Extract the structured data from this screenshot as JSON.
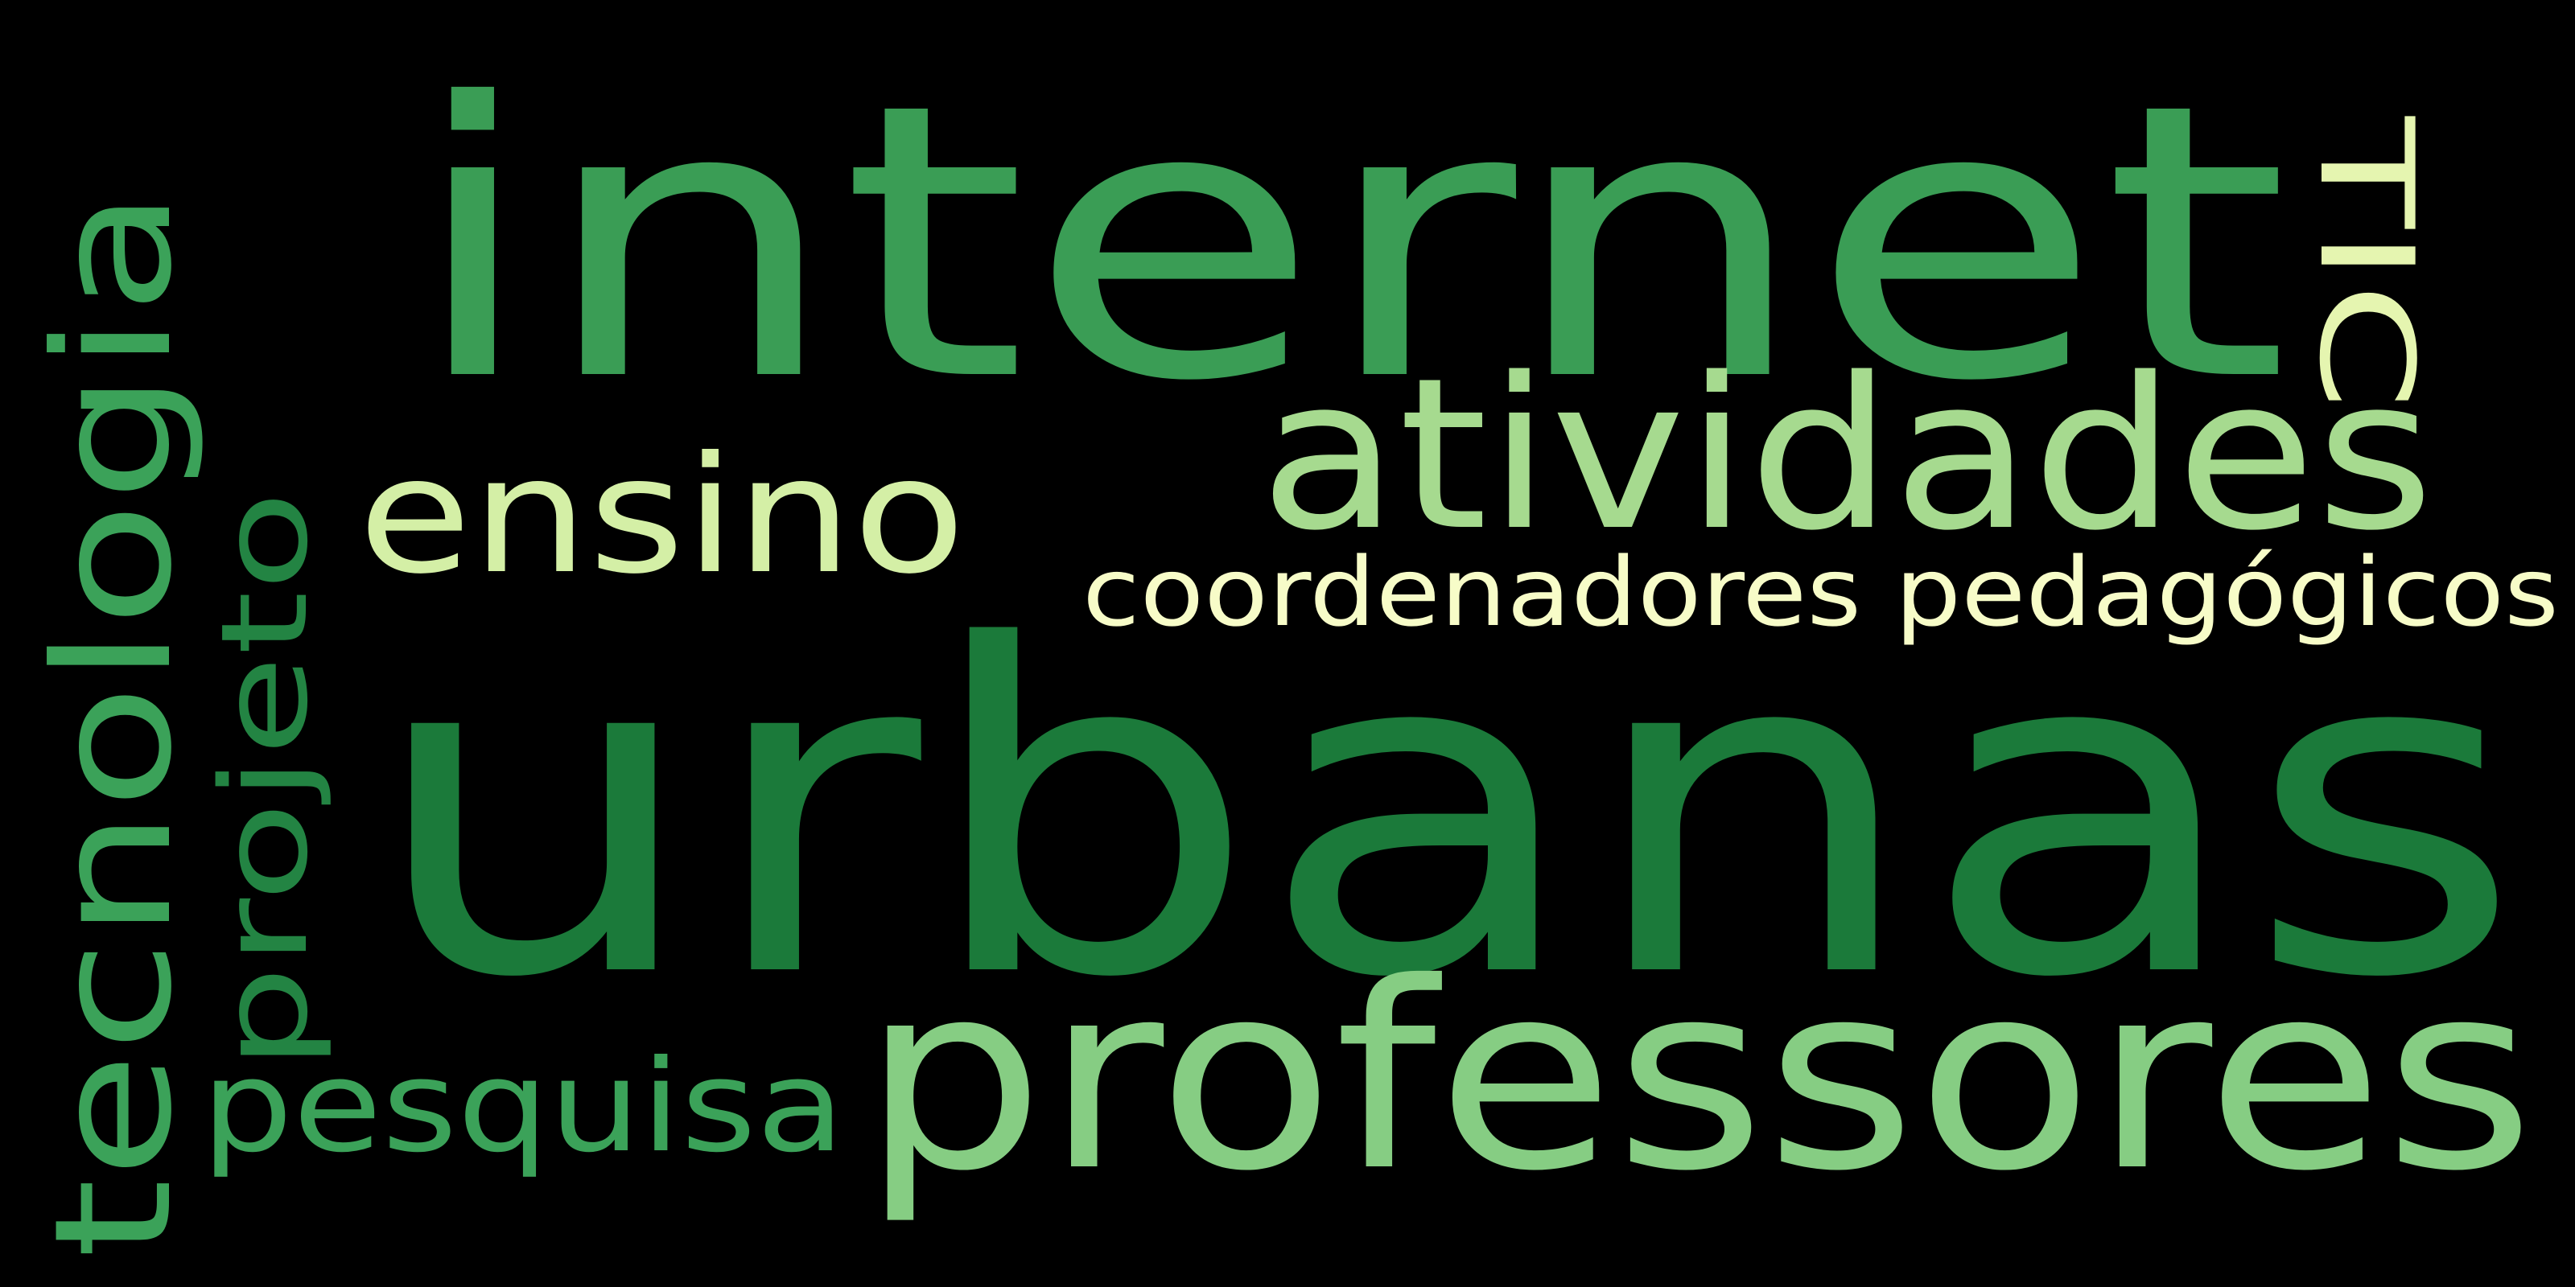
{
  "background": "#000000",
  "words": [
    {
      "key": "urbanas",
      "text": "urbanas",
      "color": "#1b7a3a"
    },
    {
      "key": "internet",
      "text": "internet",
      "color": "#3a9d55"
    },
    {
      "key": "professores",
      "text": "professores",
      "color": "#86cd83"
    },
    {
      "key": "atividades",
      "text": "atividades",
      "color": "#a6da8f"
    },
    {
      "key": "tecnologia",
      "text": "tecnologia",
      "color": "#3ba259"
    },
    {
      "key": "projeto",
      "text": "projeto",
      "color": "#238443"
    },
    {
      "key": "ensino",
      "text": "ensino",
      "color": "#d4efa6"
    },
    {
      "key": "coordenadores",
      "text": "coordenadores pedagógicos",
      "color": "#f7fcc8"
    },
    {
      "key": "pesquisa",
      "text": "pesquisa",
      "color": "#3ba259"
    },
    {
      "key": "tic",
      "text": "TIC",
      "color": "#e5f5b0"
    }
  ]
}
